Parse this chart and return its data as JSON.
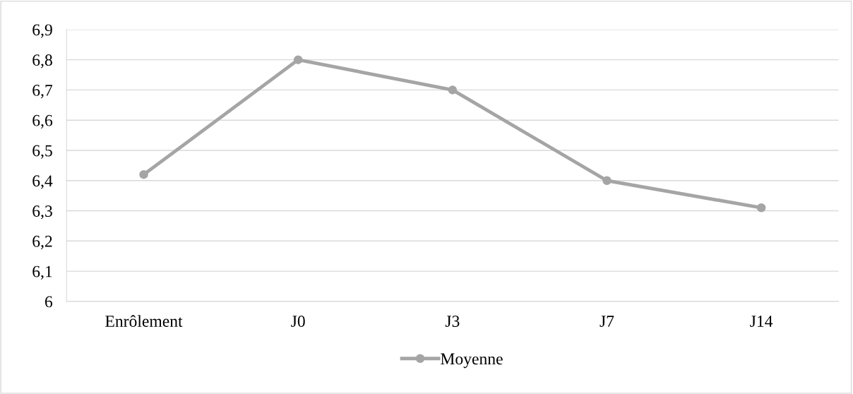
{
  "chart_data": {
    "type": "line",
    "categories": [
      "Enrôlement",
      "J0",
      "J3",
      "J7",
      "J14"
    ],
    "series": [
      {
        "name": "Moyenne",
        "color": "#a5a5a5",
        "values": [
          6.42,
          6.8,
          6.7,
          6.4,
          6.31
        ]
      }
    ],
    "ylim": [
      6,
      6.9
    ],
    "yticks": [
      {
        "value": 6,
        "label": "6"
      },
      {
        "value": 6.1,
        "label": "6,1"
      },
      {
        "value": 6.2,
        "label": "6,2"
      },
      {
        "value": 6.3,
        "label": "6,3"
      },
      {
        "value": 6.4,
        "label": "6,4"
      },
      {
        "value": 6.5,
        "label": "6,5"
      },
      {
        "value": 6.6,
        "label": "6,6"
      },
      {
        "value": 6.7,
        "label": "6,7"
      },
      {
        "value": 6.8,
        "label": "6,8"
      },
      {
        "value": 6.9,
        "label": "6,9"
      }
    ],
    "grid": "y",
    "legend": "bottom",
    "marker": "circle",
    "line_style": "solid"
  }
}
